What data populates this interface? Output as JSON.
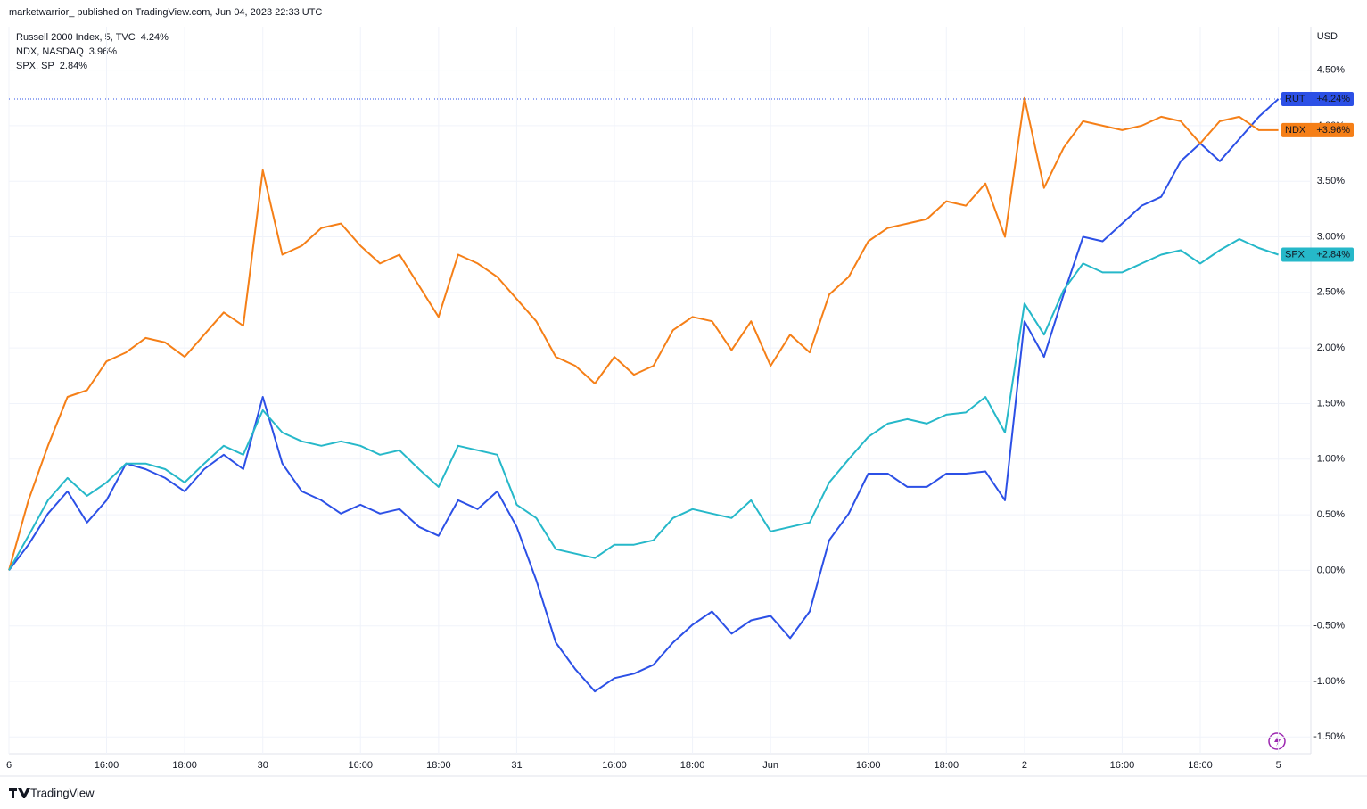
{
  "header": "marketwarrior_ published on TradingView.com, Jun 04, 2023 22:33 UTC",
  "footer": "TradingView",
  "chart_data": {
    "type": "line",
    "currency": "USD",
    "x": [
      0,
      0.5,
      1,
      1.5,
      2,
      2.5,
      3,
      3.5,
      4,
      4.5,
      5,
      5.5,
      6,
      6.5,
      7,
      7.5,
      8,
      8.5,
      9,
      9.5,
      10,
      10.5,
      11,
      11.5,
      12,
      12.5,
      13,
      13.5,
      14,
      14.5,
      15,
      15.5,
      16,
      16.5,
      17,
      17.5,
      18,
      18.5,
      19,
      19.5,
      20,
      20.5,
      21,
      21.5,
      22,
      22.5,
      23,
      23.5,
      24,
      24.5,
      25,
      25.5,
      26,
      26.5,
      27,
      27.5,
      28,
      28.5,
      29,
      29.5,
      30,
      30.5,
      31,
      31.5,
      32,
      32.5
    ],
    "series": [
      {
        "name": "Russell 2000 Index, 5, TVC",
        "short": "RUT",
        "legend_value": "4.24%",
        "tag_label": "+4.24%",
        "color": "#2c50e6",
        "values": [
          0,
          0.23,
          0.51,
          0.71,
          0.43,
          0.63,
          0.96,
          0.91,
          0.83,
          0.71,
          0.91,
          1.04,
          0.91,
          1.56,
          0.96,
          0.71,
          0.63,
          0.51,
          0.59,
          0.51,
          0.55,
          0.39,
          0.31,
          0.63,
          0.55,
          0.71,
          0.39,
          -0.09,
          -0.65,
          -0.89,
          -1.09,
          -0.97,
          -0.93,
          -0.85,
          -0.65,
          -0.49,
          -0.37,
          -0.57,
          -0.45,
          -0.41,
          -0.61,
          -0.37,
          0.27,
          0.51,
          0.87,
          0.87,
          0.75,
          0.75,
          0.87,
          0.87,
          0.89,
          0.63,
          2.24,
          1.92,
          2.48,
          3.0,
          2.96,
          3.12,
          3.28,
          3.36,
          3.68,
          3.84,
          3.68,
          3.88,
          4.08,
          4.24
        ]
      },
      {
        "name": "NDX, NASDAQ",
        "short": "NDX",
        "legend_value": "3.96%",
        "tag_label": "+3.96%",
        "color": "#f57f17",
        "values": [
          0,
          0.63,
          1.12,
          1.56,
          1.62,
          1.88,
          1.96,
          2.09,
          2.05,
          1.92,
          2.12,
          2.32,
          2.2,
          3.6,
          2.84,
          2.92,
          3.08,
          3.12,
          2.92,
          2.76,
          2.84,
          2.56,
          2.28,
          2.84,
          2.76,
          2.64,
          2.44,
          2.24,
          1.92,
          1.84,
          1.68,
          1.92,
          1.76,
          1.84,
          2.16,
          2.28,
          2.24,
          1.98,
          2.24,
          1.84,
          2.12,
          1.96,
          2.48,
          2.64,
          2.96,
          3.08,
          3.12,
          3.16,
          3.32,
          3.28,
          3.48,
          3.0,
          4.25,
          3.44,
          3.8,
          4.04,
          4.0,
          3.96,
          4.0,
          4.08,
          4.04,
          3.84,
          4.04,
          4.08,
          3.96,
          3.96
        ]
      },
      {
        "name": "SPX, SP",
        "short": "SPX",
        "legend_value": "2.84%",
        "tag_label": "+2.84%",
        "color": "#26b8c9",
        "values": [
          0,
          0.31,
          0.63,
          0.83,
          0.67,
          0.79,
          0.96,
          0.96,
          0.91,
          0.79,
          0.96,
          1.12,
          1.04,
          1.44,
          1.24,
          1.16,
          1.12,
          1.16,
          1.12,
          1.04,
          1.08,
          0.91,
          0.75,
          1.12,
          1.08,
          1.04,
          0.59,
          0.47,
          0.19,
          0.15,
          0.11,
          0.23,
          0.23,
          0.27,
          0.47,
          0.55,
          0.51,
          0.47,
          0.63,
          0.35,
          0.39,
          0.43,
          0.79,
          1.0,
          1.2,
          1.32,
          1.36,
          1.32,
          1.4,
          1.42,
          1.56,
          1.24,
          2.4,
          2.12,
          2.52,
          2.76,
          2.68,
          2.68,
          2.76,
          2.84,
          2.88,
          2.76,
          2.88,
          2.98,
          2.9,
          2.84
        ]
      }
    ],
    "xlim": [
      0,
      33.33
    ],
    "xticks": [
      {
        "value": 0,
        "label": "6"
      },
      {
        "value": 2.5,
        "label": "16:00"
      },
      {
        "value": 4.5,
        "label": "18:00"
      },
      {
        "value": 6.5,
        "label": "30"
      },
      {
        "value": 9,
        "label": "16:00"
      },
      {
        "value": 11,
        "label": "18:00"
      },
      {
        "value": 13,
        "label": "31"
      },
      {
        "value": 15.5,
        "label": "16:00"
      },
      {
        "value": 17.5,
        "label": "18:00"
      },
      {
        "value": 19.5,
        "label": "Jun"
      },
      {
        "value": 22,
        "label": "16:00"
      },
      {
        "value": 24,
        "label": "18:00"
      },
      {
        "value": 26,
        "label": "2"
      },
      {
        "value": 28.5,
        "label": "16:00"
      },
      {
        "value": 30.5,
        "label": "18:00"
      },
      {
        "value": 32.5,
        "label": "5"
      }
    ],
    "ylim": [
      -1.65,
      4.89
    ],
    "yticks": [
      {
        "value": 4.5,
        "label": "4.50%"
      },
      {
        "value": 4,
        "label": "4.00%"
      },
      {
        "value": 3.5,
        "label": "3.50%"
      },
      {
        "value": 3,
        "label": "3.00%"
      },
      {
        "value": 2.5,
        "label": "2.50%"
      },
      {
        "value": 2,
        "label": "2.00%"
      },
      {
        "value": 1.5,
        "label": "1.50%"
      },
      {
        "value": 1,
        "label": "1.00%"
      },
      {
        "value": 0.5,
        "label": "0.50%"
      },
      {
        "value": 0,
        "label": "0.00%"
      },
      {
        "value": -0.5,
        "label": "-0.50%"
      },
      {
        "value": -1,
        "label": "-1.00%"
      },
      {
        "value": -1.5,
        "label": "-1.50%"
      }
    ],
    "grid": true
  }
}
